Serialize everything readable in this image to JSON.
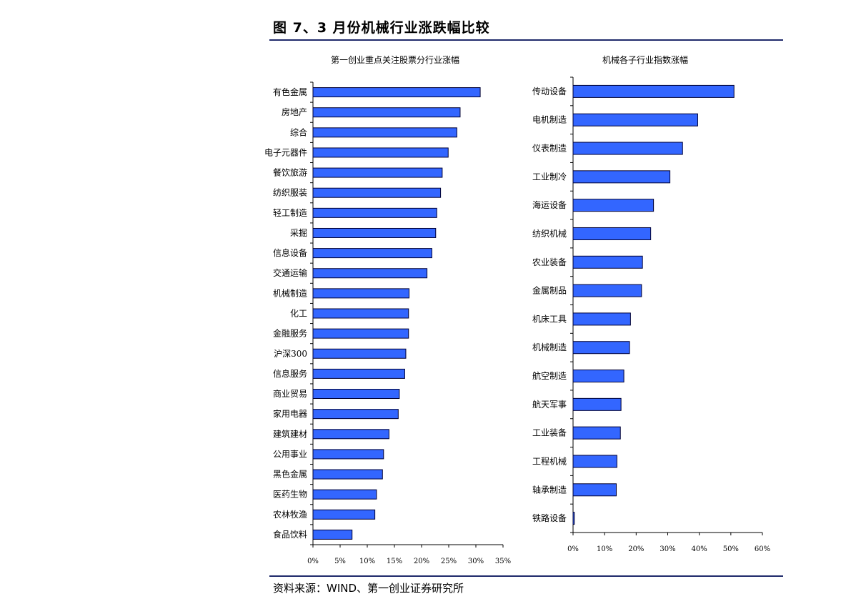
{
  "figure": {
    "title": "图 7、3 月份机械行业涨跌幅比较",
    "source": "资料来源：WIND、第一创业证券研究所"
  },
  "chart_data": [
    {
      "type": "bar",
      "orientation": "horizontal",
      "title": "第一创业重点关注股票分行业涨幅",
      "categories": [
        "有色金属",
        "房地产",
        "综合",
        "电子元器件",
        "餐饮旅游",
        "纺织服装",
        "轻工制造",
        "采掘",
        "信息设备",
        "交通运输",
        "机械制造",
        "化工",
        "金融服务",
        "沪深300",
        "信息服务",
        "商业贸易",
        "家用电器",
        "建筑建材",
        "公用事业",
        "黑色金属",
        "医药生物",
        "农林牧渔",
        "食品饮料"
      ],
      "values": [
        30.8,
        27.1,
        26.5,
        24.9,
        23.8,
        23.5,
        22.8,
        22.6,
        21.9,
        21.0,
        17.7,
        17.6,
        17.6,
        17.1,
        16.9,
        15.9,
        15.7,
        14.0,
        13.0,
        12.8,
        11.7,
        11.4,
        7.2
      ],
      "xlim": [
        0,
        35
      ],
      "xticks": [
        "0%",
        "5%",
        "10%",
        "15%",
        "20%",
        "25%",
        "30%",
        "35%"
      ],
      "color": "#3366ff"
    },
    {
      "type": "bar",
      "orientation": "horizontal",
      "title": "机械各子行业指数涨幅",
      "categories": [
        "传动设备",
        "电机制造",
        "仪表制造",
        "工业制冷",
        "海运设备",
        "纺织机械",
        "农业装备",
        "金属制品",
        "机床工具",
        "机械制造",
        "航空制造",
        "航天军事",
        "工业装备",
        "工程机械",
        "轴承制造",
        "铁路设备"
      ],
      "values": [
        51.0,
        39.5,
        34.7,
        30.7,
        25.5,
        24.6,
        22.0,
        21.7,
        18.2,
        17.9,
        16.1,
        15.2,
        15.0,
        13.9,
        13.7,
        0.4
      ],
      "xlim": [
        0,
        60
      ],
      "xticks": [
        "0%",
        "10%",
        "20%",
        "30%",
        "40%",
        "50%",
        "60%"
      ],
      "color": "#3366ff"
    }
  ]
}
